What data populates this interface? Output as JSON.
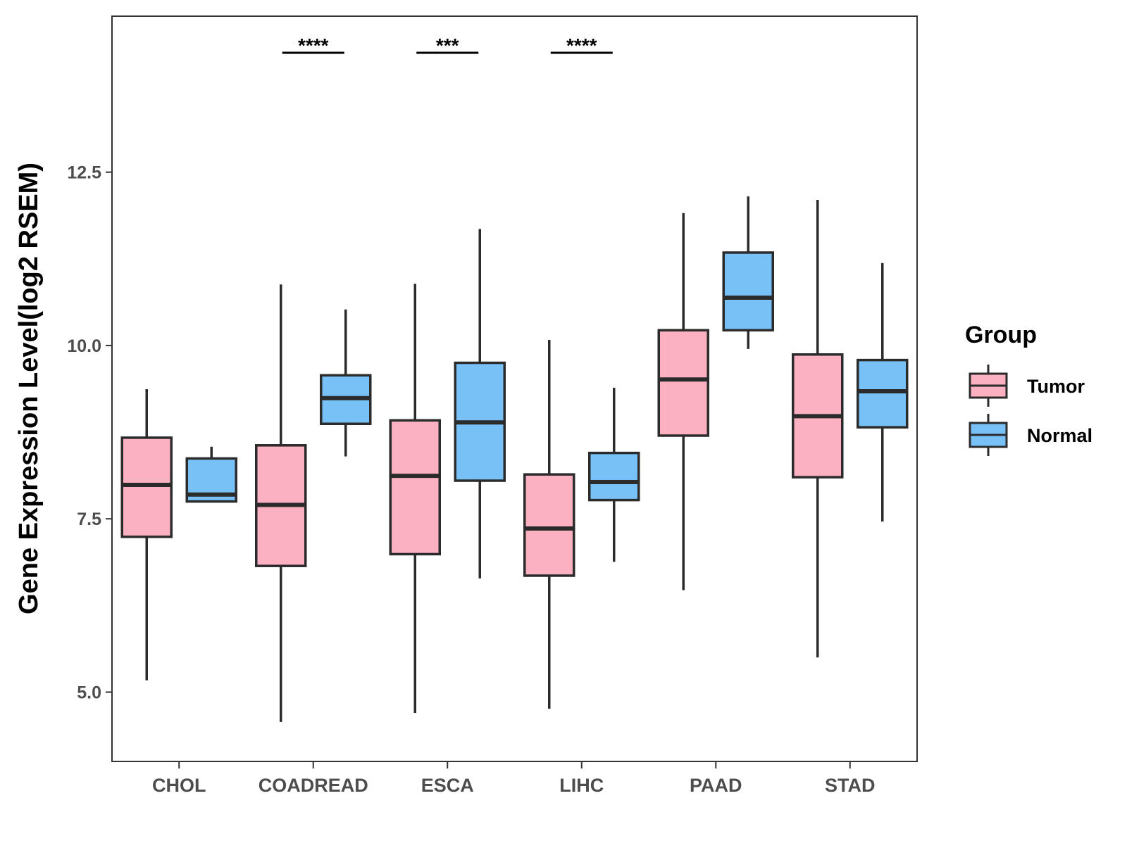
{
  "chart_data": {
    "type": "boxplot",
    "title": "",
    "xlabel": "",
    "ylabel": "Gene Expression Level(log2 RSEM)",
    "ylim": [
      4.0,
      14.75
    ],
    "yticks": [
      5.0,
      7.5,
      10.0,
      12.5
    ],
    "ytick_labels": [
      "5.0",
      "7.5",
      "10.0",
      "12.5"
    ],
    "grid": false,
    "categories": [
      "CHOL",
      "COADREAD",
      "ESCA",
      "LIHC",
      "PAAD",
      "STAD"
    ],
    "legend": {
      "title": "Group",
      "position": "right",
      "entries": [
        {
          "name": "Tumor",
          "color": "#fbb1c2"
        },
        {
          "name": "Normal",
          "color": "#78c1f7"
        }
      ]
    },
    "series": [
      {
        "name": "Tumor",
        "color": "#fbb1c2",
        "boxes": [
          {
            "min": 5.17,
            "q1": 7.24,
            "median": 7.99,
            "q3": 8.67,
            "max": 9.37
          },
          {
            "min": 4.57,
            "q1": 6.82,
            "median": 7.7,
            "q3": 8.56,
            "max": 10.88
          },
          {
            "min": 4.7,
            "q1": 6.99,
            "median": 8.12,
            "q3": 8.92,
            "max": 10.89
          },
          {
            "min": 4.76,
            "q1": 6.68,
            "median": 7.36,
            "q3": 8.14,
            "max": 10.08
          },
          {
            "min": 6.47,
            "q1": 8.7,
            "median": 9.51,
            "q3": 10.22,
            "max": 11.91
          },
          {
            "min": 5.5,
            "q1": 8.1,
            "median": 8.98,
            "q3": 9.87,
            "max": 12.1
          }
        ]
      },
      {
        "name": "Normal",
        "color": "#78c1f7",
        "boxes": [
          {
            "min": 7.75,
            "q1": 7.75,
            "median": 7.85,
            "q3": 8.37,
            "max": 8.54
          },
          {
            "min": 8.4,
            "q1": 8.87,
            "median": 9.24,
            "q3": 9.57,
            "max": 10.52
          },
          {
            "min": 6.64,
            "q1": 8.05,
            "median": 8.89,
            "q3": 9.75,
            "max": 11.68
          },
          {
            "min": 6.88,
            "q1": 7.77,
            "median": 8.03,
            "q3": 8.45,
            "max": 9.39
          },
          {
            "min": 9.95,
            "q1": 10.22,
            "median": 10.69,
            "q3": 11.34,
            "max": 12.15
          },
          {
            "min": 7.46,
            "q1": 8.82,
            "median": 9.34,
            "q3": 9.79,
            "max": 11.19
          }
        ]
      }
    ],
    "significance": [
      {
        "category": "CHOL",
        "label": ""
      },
      {
        "category": "COADREAD",
        "label": "****"
      },
      {
        "category": "ESCA",
        "label": "***"
      },
      {
        "category": "LIHC",
        "label": "****"
      },
      {
        "category": "PAAD",
        "label": ""
      },
      {
        "category": "STAD",
        "label": ""
      }
    ]
  }
}
